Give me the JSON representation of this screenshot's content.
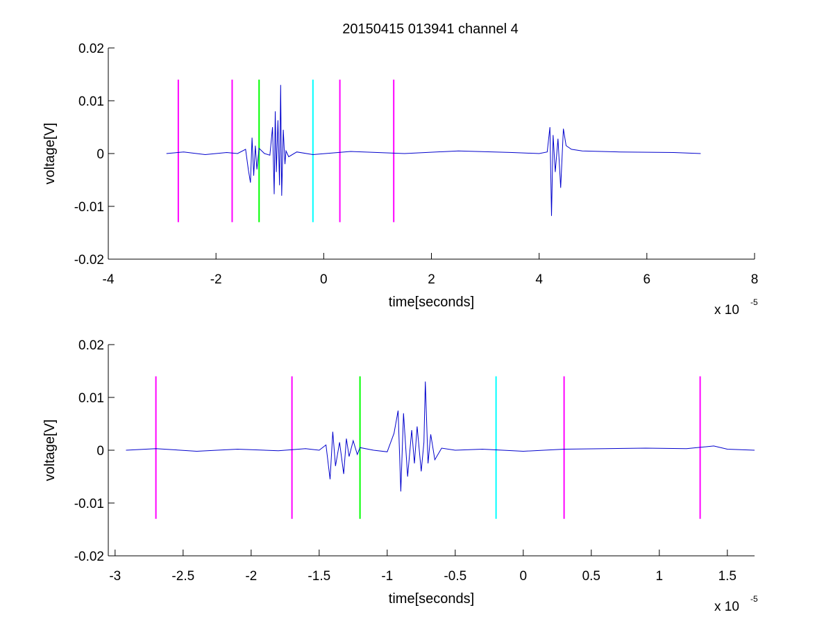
{
  "chart_data": [
    {
      "type": "line",
      "title": "20150415 013941 channel 4",
      "xlabel": "time[seconds]",
      "ylabel": "voltage[V]",
      "x_exponent_label": "x 10",
      "x_exponent": "-5",
      "xlim": [
        -4,
        8
      ],
      "ylim": [
        -0.02,
        0.02
      ],
      "x_ticks": [
        "-4",
        "-2",
        "0",
        "2",
        "4",
        "6",
        "8"
      ],
      "x_tick_values": [
        -4,
        -2,
        0,
        2,
        4,
        6,
        8
      ],
      "y_ticks": [
        "-0.02",
        "-0.01",
        "0",
        "0.01",
        "0.02"
      ],
      "y_tick_values": [
        -0.02,
        -0.01,
        0,
        0.01,
        0.02
      ],
      "grid": false,
      "series": [
        {
          "color": "#0000cc",
          "x": [
            -2.92,
            -2.6,
            -2.2,
            -1.8,
            -1.6,
            -1.45,
            -1.4,
            -1.36,
            -1.33,
            -1.3,
            -1.27,
            -1.24,
            -1.2,
            -1.1,
            -1.0,
            -0.95,
            -0.92,
            -0.9,
            -0.88,
            -0.85,
            -0.82,
            -0.8,
            -0.78,
            -0.75,
            -0.72,
            -0.7,
            -0.65,
            -0.5,
            -0.2,
            0.5,
            1.5,
            2.5,
            3.5,
            4.0,
            4.15,
            4.2,
            4.23,
            4.26,
            4.3,
            4.35,
            4.4,
            4.45,
            4.5,
            4.6,
            4.8,
            5.5,
            6.5,
            7.0
          ],
          "y": [
            0.0,
            0.0003,
            -0.0002,
            0.0002,
            0.0,
            0.0008,
            -0.003,
            -0.0055,
            0.003,
            -0.0042,
            0.0015,
            -0.003,
            0.001,
            0.0,
            -0.0003,
            0.005,
            -0.0077,
            0.008,
            -0.0035,
            0.0063,
            -0.006,
            0.013,
            -0.008,
            0.0045,
            -0.002,
            0.0005,
            -0.0006,
            0.0003,
            -0.0002,
            0.0004,
            0.0,
            0.0005,
            0.0002,
            0.0,
            0.0003,
            0.005,
            -0.0118,
            0.0035,
            -0.0035,
            0.0028,
            -0.0065,
            0.0047,
            0.0015,
            0.0008,
            0.0005,
            0.0003,
            0.0002,
            0.0
          ]
        }
      ],
      "vertical_markers": [
        {
          "x": -2.7,
          "color": "#ff00ff"
        },
        {
          "x": -1.7,
          "color": "#ff00ff"
        },
        {
          "x": -1.2,
          "color": "#00ff00"
        },
        {
          "x": -0.2,
          "color": "#00ffff"
        },
        {
          "x": 0.3,
          "color": "#ff00ff"
        },
        {
          "x": 1.3,
          "color": "#ff00ff"
        }
      ],
      "marker_ylim": [
        -0.013,
        0.014
      ]
    },
    {
      "type": "line",
      "title": "",
      "xlabel": "time[seconds]",
      "ylabel": "voltage[V]",
      "x_exponent_label": "x 10",
      "x_exponent": "-5",
      "xlim": [
        -3.05,
        1.7
      ],
      "ylim": [
        -0.02,
        0.02
      ],
      "x_ticks": [
        "-3",
        "-2.5",
        "-2",
        "-1.5",
        "-1",
        "-0.5",
        "0",
        "0.5",
        "1",
        "1.5"
      ],
      "x_tick_values": [
        -3,
        -2.5,
        -2,
        -1.5,
        -1,
        -0.5,
        0,
        0.5,
        1,
        1.5
      ],
      "y_ticks": [
        "-0.02",
        "-0.01",
        "0",
        "0.01",
        "0.02"
      ],
      "y_tick_values": [
        -0.02,
        -0.01,
        0,
        0.01,
        0.02
      ],
      "grid": false,
      "series": [
        {
          "color": "#0000cc",
          "x": [
            -2.92,
            -2.7,
            -2.4,
            -2.1,
            -1.8,
            -1.6,
            -1.5,
            -1.45,
            -1.42,
            -1.4,
            -1.38,
            -1.35,
            -1.32,
            -1.3,
            -1.28,
            -1.25,
            -1.22,
            -1.2,
            -1.1,
            -1.0,
            -0.95,
            -0.92,
            -0.9,
            -0.88,
            -0.85,
            -0.82,
            -0.8,
            -0.78,
            -0.75,
            -0.73,
            -0.72,
            -0.7,
            -0.68,
            -0.65,
            -0.6,
            -0.5,
            -0.3,
            0.0,
            0.3,
            0.6,
            0.9,
            1.2,
            1.4,
            1.5,
            1.7
          ],
          "y": [
            0.0,
            0.0003,
            -0.0002,
            0.0002,
            -0.0001,
            0.0003,
            0.0,
            0.001,
            -0.0055,
            0.0035,
            -0.003,
            0.0015,
            -0.0045,
            0.0022,
            -0.0012,
            0.0018,
            -0.0008,
            0.0005,
            0.0,
            -0.0003,
            0.0032,
            0.0075,
            -0.0078,
            0.007,
            -0.005,
            0.0038,
            -0.0025,
            0.0045,
            -0.004,
            0.0015,
            0.013,
            -0.0025,
            0.003,
            -0.0018,
            0.0004,
            0.0,
            0.0002,
            -0.0002,
            0.0002,
            0.0003,
            0.0004,
            0.0003,
            0.0008,
            0.0002,
            0.0
          ]
        }
      ],
      "vertical_markers": [
        {
          "x": -2.7,
          "color": "#ff00ff"
        },
        {
          "x": -1.7,
          "color": "#ff00ff"
        },
        {
          "x": -1.2,
          "color": "#00ff00"
        },
        {
          "x": -0.2,
          "color": "#00ffff"
        },
        {
          "x": 0.3,
          "color": "#ff00ff"
        },
        {
          "x": 1.3,
          "color": "#ff00ff"
        }
      ],
      "marker_ylim": [
        -0.013,
        0.014
      ]
    }
  ]
}
